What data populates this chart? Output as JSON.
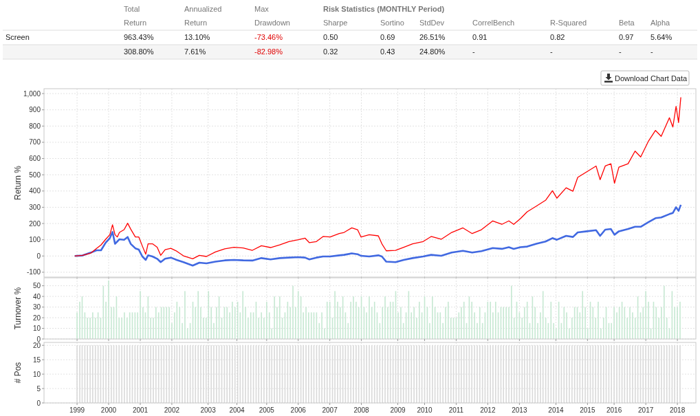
{
  "chart_data": [
    {
      "type": "other",
      "title": "Risk Statistics (MONTHLY Period)",
      "annotations": [
        "Total",
        "Annualized",
        "Max",
        "Return",
        "Return",
        "Drawdown",
        "Sharpe",
        "Sortino",
        "StdDev",
        "CorrelBench",
        "R-Squared",
        "Beta",
        "Alpha",
        "Screen",
        "963.43%",
        "13.10%",
        "-73.46%",
        "0.50",
        "0.69",
        "26.51%",
        "0.91",
        "0.82",
        "0.97",
        "5.64%",
        "308.80%",
        "7.61%",
        "-82.98%",
        "0.32",
        "0.43",
        "24.80%",
        "-",
        "-",
        "-",
        "-",
        "Download Chart Data"
      ]
    },
    {
      "type": "line",
      "ylabel": "Return %",
      "xlim": [
        "1997-12-15",
        "2018-08-03"
      ],
      "ylim": [
        -130,
        1030
      ],
      "xticks": [
        {
          "value": "1999-01-01",
          "label": null
        },
        {
          "value": "2000-01-01",
          "label": null
        },
        {
          "value": "2001-01-01",
          "label": null
        },
        {
          "value": "2002-01-01",
          "label": null
        },
        {
          "value": "2003-02-24",
          "label": null
        },
        {
          "value": "2004-01-23",
          "label": null
        },
        {
          "value": "2005-01-01",
          "label": null
        },
        {
          "value": "2006-01-01",
          "label": null
        },
        {
          "value": "2007-01-01",
          "label": null
        },
        {
          "value": "2008-01-01",
          "label": null
        },
        {
          "value": "2009-02-25",
          "label": null
        },
        {
          "value": "2010-01-01",
          "label": null
        },
        {
          "value": "2011-01-01",
          "label": null
        },
        {
          "value": "2012-01-01",
          "label": null
        },
        {
          "value": "2013-01-01",
          "label": null
        },
        {
          "value": "2014-02-27",
          "label": null
        },
        {
          "value": "2015-02-27",
          "label": null
        },
        {
          "value": "2016-01-01",
          "label": null
        },
        {
          "value": "2017-01-01",
          "label": null
        },
        {
          "value": "2018-01-01",
          "label": null
        }
      ],
      "yticks": [
        -100,
        0,
        100,
        200,
        300,
        400,
        500,
        600,
        700,
        800,
        900,
        {
          "value": 1000,
          "label": "1,000"
        }
      ],
      "grid": true,
      "tick_labels": "y",
      "line_style": "solid",
      "marker": "none",
      "x": [
        "1998-12-05",
        "1999-03-05",
        "1999-06-10",
        "1999-08-15",
        "1999-10-05",
        "1999-11-28",
        "2000-01-15",
        "2000-02-15",
        "2000-03-15",
        "2000-04-10",
        "2000-05-05",
        "2000-06-28",
        "2000-08-08",
        "2000-09-12",
        "2000-11-05",
        "2000-12-15",
        "2001-01-25",
        "2001-03-05",
        "2001-04-01",
        "2001-05-22",
        "2001-07-15",
        "2001-08-25",
        "2001-10-15",
        "2001-12-20",
        "2002-02-25",
        "2002-05-15",
        "2002-08-30",
        "2002-11-15",
        "2003-02-05",
        "2003-05-20",
        "2003-09-05",
        "2003-12-20",
        "2004-04-05",
        "2004-07-20",
        "2004-11-01",
        "2005-02-15",
        "2005-06-01",
        "2005-09-15",
        "2006-01-01",
        "2006-03-20",
        "2006-05-10",
        "2006-07-30",
        "2006-10-15",
        "2007-01-05",
        "2007-04-20",
        "2007-06-15",
        "2007-09-12",
        "2007-11-18",
        "2007-12-28",
        "2008-04-01",
        "2008-07-15",
        "2008-08-25",
        "2008-10-15",
        "2009-01-30",
        "2009-05-05",
        "2009-08-15",
        "2009-12-15",
        "2010-03-18",
        "2010-07-12",
        "2010-11-10",
        "2011-03-20",
        "2011-07-05",
        "2011-10-20",
        "2012-02-28",
        "2012-06-12",
        "2012-09-01",
        "2012-10-27",
        "2013-01-12",
        "2013-04-01",
        "2013-07-16",
        "2013-10-30",
        "2014-01-18",
        "2014-03-10",
        "2014-06-25",
        "2014-09-12",
        "2014-11-06",
        "2015-02-20",
        "2015-06-06",
        "2015-07-23",
        "2015-09-20",
        "2015-11-25",
        "2016-01-05",
        "2016-02-25",
        "2016-06-10",
        "2016-08-30",
        "2016-11-03",
        "2017-02-03",
        "2017-04-23",
        "2017-06-28",
        "2017-10-01",
        "2017-11-10",
        "2017-12-17",
        "2018-01-15",
        "2018-02-10"
      ],
      "series": [
        {
          "color": "#ff0000",
          "values": [
            0,
            4,
            18,
            47,
            68,
            103,
            131,
            192,
            131,
            117,
            145,
            162,
            202,
            166,
            117,
            117,
            61,
            11,
            75,
            75,
            54,
            4,
            39,
            47,
            30,
            1,
            -17,
            4,
            -3,
            25,
            44,
            54,
            49,
            35,
            63,
            52,
            68,
            89,
            100,
            110,
            82,
            89,
            120,
            117,
            138,
            145,
            173,
            162,
            117,
            131,
            124,
            75,
            32,
            35,
            54,
            75,
            89,
            120,
            103,
            145,
            173,
            138,
            162,
            216,
            195,
            216,
            195,
            230,
            272,
            307,
            343,
            402,
            356,
            420,
            399,
            484,
            519,
            554,
            470,
            554,
            568,
            448,
            547,
            568,
            646,
            610,
            709,
            773,
            737,
            851,
            794,
            921,
            822,
            977
          ]
        },
        {
          "color": "#4169e1",
          "values": [
            0,
            3,
            21,
            35,
            35,
            82,
            110,
            148,
            75,
            89,
            103,
            100,
            117,
            75,
            47,
            39,
            -3,
            -24,
            4,
            -3,
            -17,
            -38,
            -17,
            -10,
            -24,
            -38,
            -59,
            -41,
            -45,
            -35,
            -27,
            -24,
            -27,
            -28,
            -13,
            -21,
            -13,
            -10,
            -7,
            -10,
            -21,
            -10,
            -3,
            -3,
            4,
            7,
            16,
            11,
            1,
            -3,
            4,
            -3,
            -35,
            -38,
            -24,
            -13,
            -3,
            7,
            1,
            21,
            32,
            21,
            30,
            49,
            44,
            54,
            44,
            54,
            58,
            75,
            89,
            110,
            100,
            124,
            117,
            145,
            152,
            159,
            124,
            162,
            166,
            131,
            152,
            166,
            180,
            180,
            209,
            233,
            237,
            258,
            265,
            300,
            278,
            315
          ]
        }
      ]
    },
    {
      "type": "bar",
      "ylabel": "Turnover %",
      "xlim": [
        "1997-12-15",
        "2018-08-03"
      ],
      "ylim": [
        0,
        57.5
      ],
      "xticks": [
        {
          "value": "1999-01-01",
          "label": null
        },
        {
          "value": "2000-01-01",
          "label": null
        },
        {
          "value": "2001-01-01",
          "label": null
        },
        {
          "value": "2002-01-01",
          "label": null
        },
        {
          "value": "2003-02-24",
          "label": null
        },
        {
          "value": "2004-01-23",
          "label": null
        },
        {
          "value": "2005-01-01",
          "label": null
        },
        {
          "value": "2006-01-01",
          "label": null
        },
        {
          "value": "2007-01-01",
          "label": null
        },
        {
          "value": "2008-01-01",
          "label": null
        },
        {
          "value": "2009-02-25",
          "label": null
        },
        {
          "value": "2010-01-01",
          "label": null
        },
        {
          "value": "2011-01-01",
          "label": null
        },
        {
          "value": "2012-01-01",
          "label": null
        },
        {
          "value": "2013-01-01",
          "label": null
        },
        {
          "value": "2014-02-27",
          "label": null
        },
        {
          "value": "2015-02-27",
          "label": null
        },
        {
          "value": "2016-01-01",
          "label": null
        },
        {
          "value": "2017-01-01",
          "label": null
        },
        {
          "value": "2018-01-01",
          "label": null
        }
      ],
      "yticks": [
        0,
        10,
        20,
        30,
        40,
        50
      ],
      "grid": true,
      "tick_labels": "y",
      "color": "#c6e8d2",
      "x": [
        "1999-01",
        "1999-02",
        "1999-03",
        "1999-04",
        "1999-05",
        "1999-06",
        "1999-07",
        "1999-08",
        "1999-09",
        "1999-10",
        "1999-11",
        "1999-12",
        "2000-01",
        "2000-02",
        "2000-03",
        "2000-04",
        "2000-05",
        "2000-06",
        "2000-07",
        "2000-08",
        "2000-09",
        "2000-10",
        "2000-11",
        "2000-12",
        "2001-01",
        "2001-02",
        "2001-03",
        "2001-04",
        "2001-05",
        "2001-06",
        "2001-07",
        "2001-08",
        "2001-09",
        "2001-10",
        "2001-11",
        "2001-12",
        "2002-01",
        "2002-02",
        "2002-03",
        "2002-04",
        "2002-05",
        "2002-06",
        "2002-07",
        "2002-08",
        "2002-09",
        "2002-10",
        "2002-11",
        "2002-12",
        "2003-01",
        "2003-02",
        "2003-03",
        "2003-04",
        "2003-05",
        "2003-06",
        "2003-07",
        "2003-08",
        "2003-09",
        "2003-10",
        "2003-11",
        "2003-12",
        "2004-01",
        "2004-02",
        "2004-03",
        "2004-04",
        "2004-05",
        "2004-06",
        "2004-07",
        "2004-08",
        "2004-09",
        "2004-10",
        "2004-11",
        "2004-12",
        "2005-01",
        "2005-02",
        "2005-03",
        "2005-04",
        "2005-05",
        "2005-06",
        "2005-07",
        "2005-08",
        "2005-09",
        "2005-10",
        "2005-11",
        "2005-12",
        "2006-01",
        "2006-02",
        "2006-03",
        "2006-04",
        "2006-05",
        "2006-06",
        "2006-07",
        "2006-08",
        "2006-09",
        "2006-10",
        "2006-11",
        "2006-12",
        "2007-01",
        "2007-02",
        "2007-03",
        "2007-04",
        "2007-05",
        "2007-06",
        "2007-07",
        "2007-08",
        "2007-09",
        "2007-10",
        "2007-11",
        "2007-12",
        "2008-01",
        "2008-02",
        "2008-03",
        "2008-04",
        "2008-05",
        "2008-06",
        "2008-07",
        "2008-08",
        "2008-09",
        "2008-10",
        "2008-11",
        "2008-12",
        "2009-01",
        "2009-02",
        "2009-03",
        "2009-04",
        "2009-05",
        "2009-06",
        "2009-07",
        "2009-08",
        "2009-09",
        "2009-10",
        "2009-11",
        "2009-12",
        "2010-01",
        "2010-02",
        "2010-03",
        "2010-04",
        "2010-05",
        "2010-06",
        "2010-07",
        "2010-08",
        "2010-09",
        "2010-10",
        "2010-11",
        "2010-12",
        "2011-01",
        "2011-02",
        "2011-03",
        "2011-04",
        "2011-05",
        "2011-06",
        "2011-07",
        "2011-08",
        "2011-09",
        "2011-10",
        "2011-11",
        "2011-12",
        "2012-01",
        "2012-02",
        "2012-03",
        "2012-04",
        "2012-05",
        "2012-06",
        "2012-07",
        "2012-08",
        "2012-09",
        "2012-10",
        "2012-11",
        "2012-12",
        "2013-01",
        "2013-02",
        "2013-03",
        "2013-04",
        "2013-05",
        "2013-06",
        "2013-07",
        "2013-08",
        "2013-09",
        "2013-10",
        "2013-11",
        "2013-12",
        "2014-01",
        "2014-02",
        "2014-03",
        "2014-04",
        "2014-05",
        "2014-06",
        "2014-07",
        "2014-08",
        "2014-09",
        "2014-10",
        "2014-11",
        "2014-12",
        "2015-01",
        "2015-02",
        "2015-03",
        "2015-04",
        "2015-05",
        "2015-06",
        "2015-07",
        "2015-08",
        "2015-09",
        "2015-10",
        "2015-11",
        "2015-12",
        "2016-01",
        "2016-02",
        "2016-03",
        "2016-04",
        "2016-05",
        "2016-06",
        "2016-07",
        "2016-08",
        "2016-09",
        "2016-10",
        "2016-11",
        "2016-12",
        "2017-01",
        "2017-02",
        "2017-03",
        "2017-04",
        "2017-05",
        "2017-06",
        "2017-07",
        "2017-08",
        "2017-09",
        "2017-10",
        "2017-11",
        "2017-12",
        "2018-01",
        "2018-02"
      ],
      "values": [
        25,
        35,
        40,
        25,
        20,
        20,
        25,
        20,
        25,
        20,
        50,
        35,
        55,
        30,
        30,
        40,
        20,
        20,
        25,
        20,
        25,
        25,
        25,
        25,
        45,
        30,
        25,
        40,
        20,
        20,
        30,
        25,
        30,
        30,
        30,
        30,
        15,
        25,
        35,
        30,
        15,
        45,
        10,
        15,
        35,
        30,
        45,
        30,
        20,
        20,
        45,
        30,
        15,
        30,
        40,
        20,
        30,
        30,
        25,
        35,
        30,
        35,
        25,
        45,
        30,
        20,
        25,
        25,
        35,
        20,
        25,
        20,
        35,
        25,
        10,
        40,
        30,
        40,
        20,
        25,
        35,
        30,
        50,
        30,
        45,
        40,
        25,
        30,
        25,
        25,
        25,
        25,
        15,
        25,
        10,
        35,
        35,
        20,
        45,
        35,
        30,
        40,
        25,
        15,
        35,
        40,
        35,
        30,
        40,
        30,
        25,
        40,
        30,
        35,
        25,
        15,
        30,
        40,
        30,
        35,
        35,
        45,
        25,
        30,
        15,
        25,
        45,
        25,
        30,
        20,
        35,
        25,
        40,
        30,
        15,
        40,
        30,
        25,
        25,
        15,
        30,
        35,
        20,
        20,
        20,
        25,
        30,
        35,
        15,
        40,
        35,
        25,
        15,
        30,
        15,
        25,
        35,
        35,
        25,
        35,
        25,
        30,
        30,
        30,
        30,
        50,
        20,
        35,
        25,
        20,
        30,
        35,
        15,
        40,
        30,
        15,
        25,
        45,
        20,
        15,
        35,
        15,
        10,
        35,
        15,
        30,
        25,
        10,
        20,
        30,
        30,
        25,
        45,
        30,
        10,
        35,
        30,
        20,
        35,
        10,
        20,
        30,
        15,
        15,
        30,
        25,
        30,
        35,
        30,
        20,
        30,
        25,
        20,
        40,
        25,
        30,
        45,
        35,
        10,
        35,
        30,
        20,
        30,
        50,
        20,
        10,
        45,
        30,
        30,
        35
      ]
    },
    {
      "type": "bar",
      "ylabel": "# Pos",
      "xlim": [
        "1997-12-15",
        "2018-08-03"
      ],
      "ylim": [
        0,
        21
      ],
      "xticks": [
        {
          "value": "1999-01-01",
          "label": "1999"
        },
        {
          "value": "2000-01-01",
          "label": "2000"
        },
        {
          "value": "2001-01-01",
          "label": "2001"
        },
        {
          "value": "2002-01-01",
          "label": "2002"
        },
        {
          "value": "2003-02-24",
          "label": "2003"
        },
        {
          "value": "2004-01-23",
          "label": "2004"
        },
        {
          "value": "2005-01-01",
          "label": "2005"
        },
        {
          "value": "2006-01-01",
          "label": "2006"
        },
        {
          "value": "2007-01-01",
          "label": "2007"
        },
        {
          "value": "2008-01-01",
          "label": "2008"
        },
        {
          "value": "2009-02-25",
          "label": "2009"
        },
        {
          "value": "2010-01-01",
          "label": "2010"
        },
        {
          "value": "2011-01-01",
          "label": "2011"
        },
        {
          "value": "2012-01-01",
          "label": "2012"
        },
        {
          "value": "2013-01-01",
          "label": "2013"
        },
        {
          "value": "2014-02-27",
          "label": "2014"
        },
        {
          "value": "2015-02-27",
          "label": "2015"
        },
        {
          "value": "2016-01-01",
          "label": "2016"
        },
        {
          "value": "2017-01-01",
          "label": "2017"
        },
        {
          "value": "2018-01-01",
          "label": "2018"
        }
      ],
      "yticks": [
        0,
        5,
        10,
        15,
        20
      ],
      "grid": true,
      "color": "#d9d9d9",
      "x": [
        "1999-01",
        "1999-02",
        "1999-03",
        "1999-04",
        "1999-05",
        "1999-06",
        "1999-07",
        "1999-08",
        "1999-09",
        "1999-10",
        "1999-11",
        "1999-12",
        "2000-01",
        "2000-02",
        "2000-03",
        "2000-04",
        "2000-05",
        "2000-06",
        "2000-07",
        "2000-08",
        "2000-09",
        "2000-10",
        "2000-11",
        "2000-12",
        "2001-01",
        "2001-02",
        "2001-03",
        "2001-04",
        "2001-05",
        "2001-06",
        "2001-07",
        "2001-08",
        "2001-09",
        "2001-10",
        "2001-11",
        "2001-12",
        "2002-01",
        "2002-02",
        "2002-03",
        "2002-04",
        "2002-05",
        "2002-06",
        "2002-07",
        "2002-08",
        "2002-09",
        "2002-10",
        "2002-11",
        "2002-12",
        "2003-01",
        "2003-02",
        "2003-03",
        "2003-04",
        "2003-05",
        "2003-06",
        "2003-07",
        "2003-08",
        "2003-09",
        "2003-10",
        "2003-11",
        "2003-12",
        "2004-01",
        "2004-02",
        "2004-03",
        "2004-04",
        "2004-05",
        "2004-06",
        "2004-07",
        "2004-08",
        "2004-09",
        "2004-10",
        "2004-11",
        "2004-12",
        "2005-01",
        "2005-02",
        "2005-03",
        "2005-04",
        "2005-05",
        "2005-06",
        "2005-07",
        "2005-08",
        "2005-09",
        "2005-10",
        "2005-11",
        "2005-12",
        "2006-01",
        "2006-02",
        "2006-03",
        "2006-04",
        "2006-05",
        "2006-06",
        "2006-07",
        "2006-08",
        "2006-09",
        "2006-10",
        "2006-11",
        "2006-12",
        "2007-01",
        "2007-02",
        "2007-03",
        "2007-04",
        "2007-05",
        "2007-06",
        "2007-07",
        "2007-08",
        "2007-09",
        "2007-10",
        "2007-11",
        "2007-12",
        "2008-01",
        "2008-02",
        "2008-03",
        "2008-04",
        "2008-05",
        "2008-06",
        "2008-07",
        "2008-08",
        "2008-09",
        "2008-10",
        "2008-11",
        "2008-12",
        "2009-01",
        "2009-02",
        "2009-03",
        "2009-04",
        "2009-05",
        "2009-06",
        "2009-07",
        "2009-08",
        "2009-09",
        "2009-10",
        "2009-11",
        "2009-12",
        "2010-01",
        "2010-02",
        "2010-03",
        "2010-04",
        "2010-05",
        "2010-06",
        "2010-07",
        "2010-08",
        "2010-09",
        "2010-10",
        "2010-11",
        "2010-12",
        "2011-01",
        "2011-02",
        "2011-03",
        "2011-04",
        "2011-05",
        "2011-06",
        "2011-07",
        "2011-08",
        "2011-09",
        "2011-10",
        "2011-11",
        "2011-12",
        "2012-01",
        "2012-02",
        "2012-03",
        "2012-04",
        "2012-05",
        "2012-06",
        "2012-07",
        "2012-08",
        "2012-09",
        "2012-10",
        "2012-11",
        "2012-12",
        "2013-01",
        "2013-02",
        "2013-03",
        "2013-04",
        "2013-05",
        "2013-06",
        "2013-07",
        "2013-08",
        "2013-09",
        "2013-10",
        "2013-11",
        "2013-12",
        "2014-01",
        "2014-02",
        "2014-03",
        "2014-04",
        "2014-05",
        "2014-06",
        "2014-07",
        "2014-08",
        "2014-09",
        "2014-10",
        "2014-11",
        "2014-12",
        "2015-01",
        "2015-02",
        "2015-03",
        "2015-04",
        "2015-05",
        "2015-06",
        "2015-07",
        "2015-08",
        "2015-09",
        "2015-10",
        "2015-11",
        "2015-12",
        "2016-01",
        "2016-02",
        "2016-03",
        "2016-04",
        "2016-05",
        "2016-06",
        "2016-07",
        "2016-08",
        "2016-09",
        "2016-10",
        "2016-11",
        "2016-12",
        "2017-01",
        "2017-02",
        "2017-03",
        "2017-04",
        "2017-05",
        "2017-06",
        "2017-07",
        "2017-08",
        "2017-09",
        "2017-10",
        "2017-11",
        "2017-12",
        "2018-01",
        "2018-02"
      ],
      "values": [
        20,
        20,
        20,
        20,
        20,
        20,
        20,
        20,
        20,
        20,
        20,
        20,
        20,
        20,
        20,
        20,
        20,
        20,
        20,
        20,
        20,
        20,
        20,
        20,
        20,
        20,
        20,
        20,
        20,
        20,
        20,
        20,
        20,
        20,
        20,
        20,
        20,
        20,
        20,
        20,
        20,
        20,
        20,
        20,
        20,
        20,
        20,
        20,
        20,
        20,
        20,
        20,
        20,
        20,
        20,
        20,
        20,
        20,
        20,
        20,
        20,
        20,
        20,
        20,
        20,
        20,
        20,
        20,
        20,
        20,
        20,
        20,
        20,
        20,
        20,
        20,
        20,
        20,
        20,
        20,
        20,
        20,
        20,
        20,
        20,
        20,
        20,
        20,
        20,
        20,
        20,
        20,
        20,
        20,
        20,
        20,
        20,
        20,
        20,
        20,
        20,
        20,
        20,
        20,
        20,
        20,
        20,
        20,
        20,
        20,
        20,
        20,
        20,
        20,
        20,
        20,
        20,
        20,
        20,
        20,
        20,
        20,
        20,
        20,
        20,
        20,
        20,
        20,
        20,
        20,
        20,
        20,
        20,
        20,
        20,
        20,
        20,
        20,
        20,
        20,
        20,
        20,
        20,
        20,
        20,
        20,
        20,
        20,
        20,
        20,
        20,
        20,
        20,
        20,
        20,
        20,
        20,
        20,
        20,
        20,
        20,
        20,
        20,
        20,
        20,
        20,
        20,
        20,
        20,
        20,
        20,
        20,
        20,
        20,
        20,
        20,
        20,
        20,
        20,
        20,
        20,
        20,
        20,
        20,
        20,
        20,
        20,
        20,
        20,
        20,
        20,
        20,
        20,
        20,
        20,
        20,
        20,
        20,
        20,
        20,
        20,
        20,
        20,
        20,
        20,
        20,
        20,
        20,
        20,
        20,
        20,
        20,
        20,
        20,
        20,
        20,
        20,
        20,
        20,
        20,
        20,
        20,
        20,
        20,
        20,
        20,
        20,
        20,
        20,
        20
      ]
    }
  ]
}
